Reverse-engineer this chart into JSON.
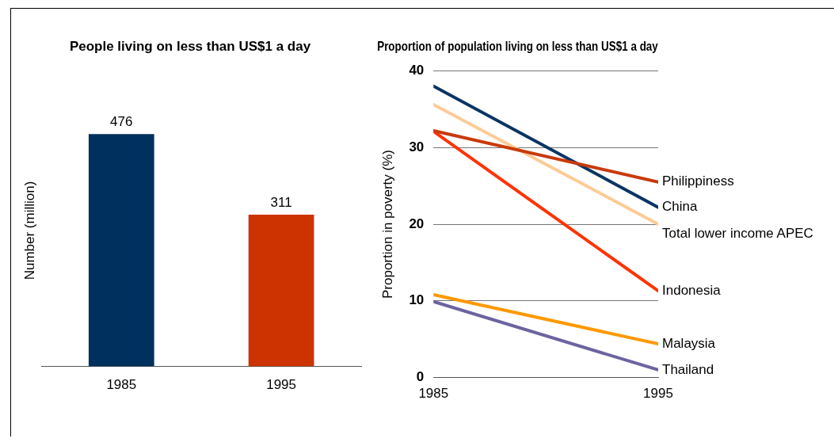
{
  "chart_data": [
    {
      "type": "bar",
      "title": "People living on less than US$1 a day",
      "ylabel": "Number (million)",
      "categories": [
        "1985",
        "1995"
      ],
      "values": [
        476,
        311
      ],
      "colors": [
        "#00315e",
        "#cc3300"
      ],
      "data_labels": true
    },
    {
      "type": "line",
      "title": "Proportion of population living on less than US$1 a day",
      "ylabel": "Proportion in poverty (%)",
      "x": [
        1985,
        1995
      ],
      "xlim": [
        1985,
        1995
      ],
      "xticks": [
        1985,
        1995
      ],
      "ylim": [
        0,
        40
      ],
      "yticks": [
        0,
        10,
        20,
        30,
        40
      ],
      "grid": "y",
      "marker": "none",
      "line_style": "solid",
      "series": [
        {
          "name": "Philippiness",
          "color": "#c83a0a",
          "values": [
            32.2,
            25.5
          ]
        },
        {
          "name": "China",
          "color": "#0a3463",
          "values": [
            38,
            22.2
          ]
        },
        {
          "name": "Total lower income APEC",
          "color": "#fccb96",
          "values": [
            35.6,
            20
          ]
        },
        {
          "name": "Indonesia",
          "color": "#ff3300",
          "values": [
            32.1,
            11.3
          ]
        },
        {
          "name": "Malaysia",
          "color": "#ff9900",
          "values": [
            10.8,
            4.4
          ]
        },
        {
          "name": "Thailand",
          "color": "#6b64a0",
          "values": [
            9.9,
            1
          ]
        }
      ]
    }
  ]
}
